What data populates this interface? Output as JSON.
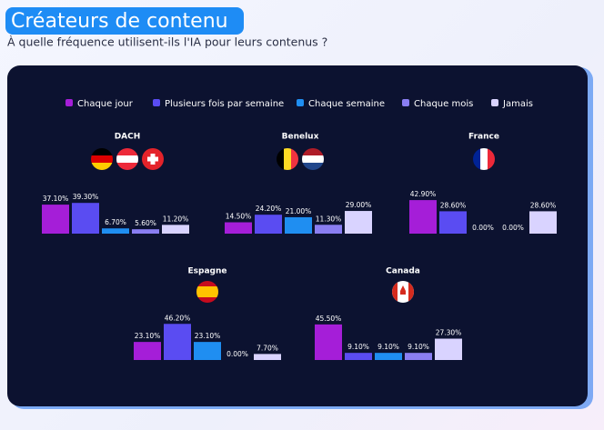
{
  "header": {
    "title": "Créateurs de contenu",
    "subtitle": "À quelle fréquence utilisent-ils l'IA pour leurs contenus ?"
  },
  "legend": [
    {
      "name": "Chaque jour",
      "color": "#a51ed8"
    },
    {
      "name": "Plusieurs fois par semaine",
      "color": "#5a4cf2"
    },
    {
      "name": "Chaque semaine",
      "color": "#1f8ef1"
    },
    {
      "name": "Chaque mois",
      "color": "#8a7ef2"
    },
    {
      "name": "Jamais",
      "color": "#d9d3ff"
    }
  ],
  "chart_data": [
    {
      "type": "bar",
      "title": "DACH",
      "values": [
        37.1,
        39.3,
        6.7,
        5.6,
        11.2
      ],
      "value_labels": [
        "37.10%",
        "39.30%",
        "6.70%",
        "5.60%",
        "11.20%"
      ]
    },
    {
      "type": "bar",
      "title": "Benelux",
      "values": [
        14.5,
        24.2,
        21.0,
        11.3,
        29.0
      ],
      "value_labels": [
        "14.50%",
        "24.20%",
        "21.00%",
        "11.30%",
        "29.00%"
      ]
    },
    {
      "type": "bar",
      "title": "France",
      "values": [
        42.9,
        28.6,
        0,
        0,
        28.6
      ],
      "value_labels": [
        "42.90%",
        "28.60%",
        "0.00%",
        "0.00%",
        "28.60%"
      ]
    },
    {
      "type": "bar",
      "title": "Espagne",
      "values": [
        23.1,
        46.2,
        23.1,
        0,
        7.7
      ],
      "value_labels": [
        "23.10%",
        "46.20%",
        "23.10%",
        "0.00%",
        "7.70%"
      ]
    },
    {
      "type": "bar",
      "title": "Canada",
      "values": [
        45.5,
        9.1,
        9.1,
        9.1,
        27.3
      ],
      "value_labels": [
        "45.50%",
        "9.10%",
        "9.10%",
        "9.10%",
        "27.30%"
      ]
    }
  ]
}
